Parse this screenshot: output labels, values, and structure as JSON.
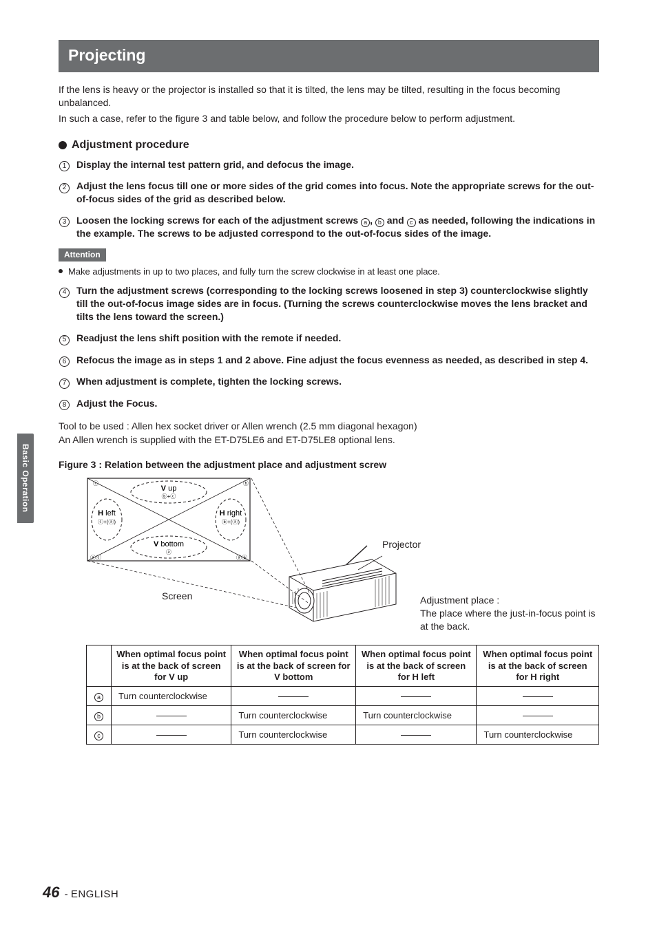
{
  "colors": {
    "bar": "#6c6e70",
    "text": "#231f20",
    "bg": "#ffffff"
  },
  "title": "Projecting",
  "intro1": "If the lens is heavy or the projector is installed so that it is tilted, the lens may be tilted, resulting in the focus becoming unbalanced.",
  "intro2": "In such a case, refer to the figure 3 and table below, and follow the procedure below to perform adjustment.",
  "adj_heading": "Adjustment procedure",
  "steps": {
    "s1": "Display the internal test pattern grid, and defocus the image.",
    "s2": "Adjust the lens focus till one or more sides of the grid comes into focus. Note the appropriate screws for the out-of-focus sides of the grid as described below.",
    "s3a": "Loosen the locking screws for each of the adjustment screws ",
    "s3b": ", ",
    "s3c": " and ",
    "s3d": " as needed, following the indications in the example. The screws to be adjusted correspond to the out-of-focus sides of the image.",
    "s4": "Turn the adjustment screws (corresponding to the locking screws loosened in step 3) counterclockwise slightly till the out-of-focus image sides are in focus. (Turning the screws counterclockwise moves the lens bracket and tilts the lens toward the screen.)",
    "s5": "Readjust the lens shift position with the remote if needed.",
    "s6": "Refocus the image as in steps 1 and 2 above. Fine adjust the focus evenness as needed, as described in step 4.",
    "s7": "When adjustment is complete, tighten the locking screws.",
    "s8": "Adjust the Focus."
  },
  "attention_label": "Attention",
  "attention_text": "Make adjustments in up to two places, and fully turn the screw clockwise in at least one place.",
  "tool1": "Tool to be used : Allen hex socket driver or Allen wrench (2.5 mm diagonal hexagon)",
  "tool2": "An Allen wrench is supplied with the ET-D75LE6 and ET-D75LE8 optional lens.",
  "fig_caption": "Figure 3 : Relation between the adjustment place and adjustment screw",
  "fig_labels": {
    "screen": "Screen",
    "projector": "Projector",
    "adj_place": "Adjustment place :",
    "adj_place_desc": "The place where the just-in-focus point is at the back.",
    "v_up": "V",
    "v_up2": "up",
    "v_bot": "V",
    "v_bot2": "bottom",
    "h_left": "H",
    "h_left2": "left",
    "h_right": "H",
    "h_right2": "right"
  },
  "table": {
    "headers": [
      "When optimal focus point is at the back of screen for V up",
      "When optimal focus point is at the back of screen for V bottom",
      "When optimal focus point is at the back of screen for H left",
      "When optimal focus point is at the back of screen for H right"
    ],
    "rows": [
      {
        "key": "a",
        "cells": [
          "Turn counterclockwise",
          "",
          "",
          ""
        ]
      },
      {
        "key": "b",
        "cells": [
          "",
          "Turn counterclockwise",
          "Turn counterclockwise",
          ""
        ]
      },
      {
        "key": "c",
        "cells": [
          "",
          "Turn counterclockwise",
          "",
          "Turn counterclockwise"
        ]
      }
    ]
  },
  "side_tab": "Basic Operation",
  "page_number": "46",
  "page_sep": " - ",
  "page_lang": "ENGLISH"
}
